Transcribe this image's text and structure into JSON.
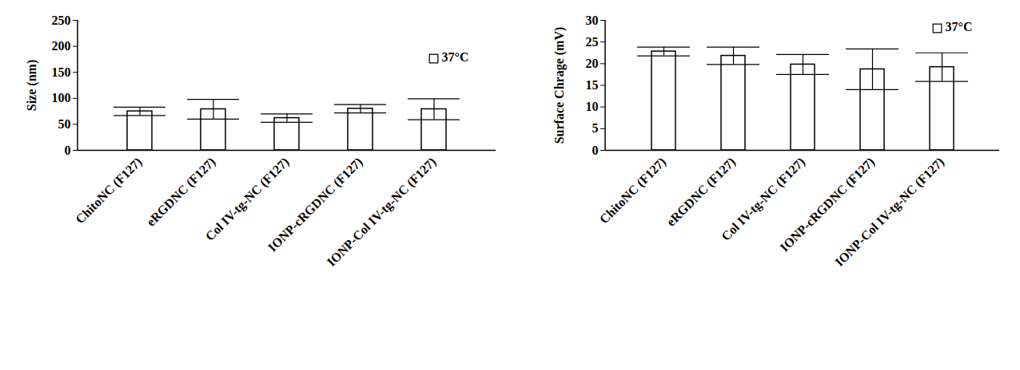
{
  "chart_data": [
    {
      "type": "bar",
      "y_label": "Size (nm)",
      "categories": [
        "ChitoNC (F127)",
        "eRGDNC (F127)",
        "Col IV-tg-NC (F127)",
        "IONP-cRGDNC (F127)",
        "IONP-Col IV-tg-NC (F127)"
      ],
      "series": [
        {
          "name": "37°C",
          "color": "#ffffff",
          "values": [
            75,
            79,
            62,
            80,
            79
          ],
          "errors": [
            8,
            19,
            8,
            8,
            20
          ]
        }
      ],
      "ylim": [
        0,
        250
      ],
      "yticks": [
        0,
        50,
        100,
        150,
        200,
        250
      ],
      "legend": "top-right"
    },
    {
      "type": "bar",
      "y_label": "Surface Chrage (mV)",
      "categories": [
        "ChitoNC (F127)",
        "eRGDNC (F127)",
        "Col IV-tg-NC (F127)",
        "IONP-cRGDNC (F127)",
        "IONP-Col IV-tg-NC (F127)"
      ],
      "series": [
        {
          "name": "37°C",
          "color": "#ffffff",
          "values": [
            22.8,
            21.8,
            19.8,
            18.7,
            19.2
          ],
          "errors": [
            1.0,
            2.0,
            2.3,
            4.7,
            3.3
          ]
        }
      ],
      "ylim": [
        0,
        30
      ],
      "yticks": [
        0,
        5,
        10,
        15,
        20,
        25,
        30
      ],
      "legend": "top-right"
    }
  ]
}
